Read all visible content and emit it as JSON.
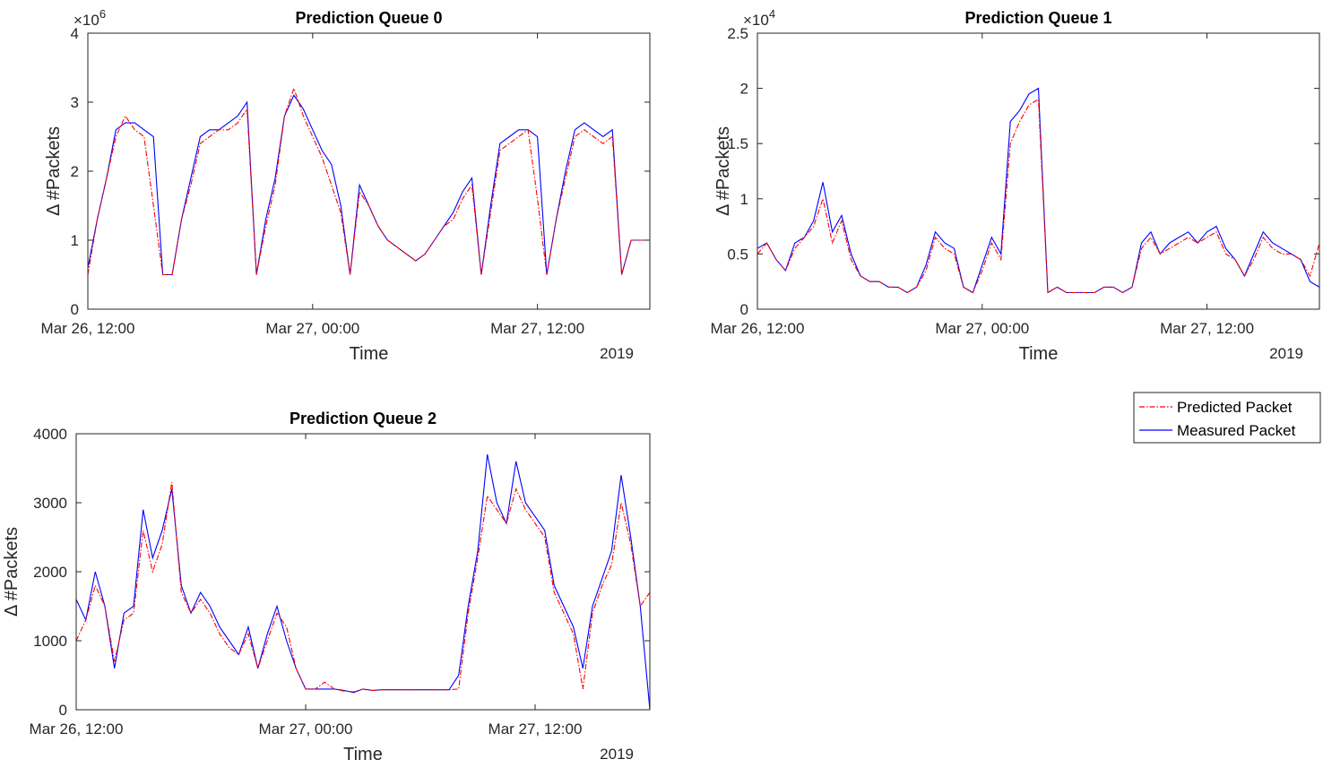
{
  "colors": {
    "predicted": "#ff0000",
    "measured": "#0000ff",
    "axis": "#262626"
  },
  "legend": {
    "entries": [
      "Predicted Packet",
      "Measured Packet"
    ]
  },
  "chart_data": [
    {
      "type": "line",
      "title": "Prediction Queue 0",
      "xlabel": "Time",
      "ylabel": "Δ #Packets",
      "year_label": "2019",
      "exponent": "6",
      "exponent_prefix": "×10",
      "x_ticks": [
        "Mar 26, 12:00",
        "Mar 27, 00:00",
        "Mar 27, 12:00"
      ],
      "y_ticks": [
        "0",
        "1",
        "2",
        "3",
        "4"
      ],
      "xlim_hours": [
        0,
        30
      ],
      "ylim": [
        0,
        4
      ],
      "series": [
        {
          "name": "Measured Packet",
          "x": [
            0,
            0.5,
            1,
            1.5,
            2,
            2.5,
            3,
            3.5,
            4,
            4.5,
            5,
            5.5,
            6,
            6.5,
            7,
            7.5,
            8,
            8.5,
            9,
            9.5,
            10,
            10.5,
            11,
            11.5,
            12,
            12.5,
            13,
            13.5,
            14,
            14.5,
            15,
            15.5,
            16,
            16.5,
            17,
            17.5,
            18,
            18.5,
            19,
            19.5,
            20,
            20.5,
            21,
            21.5,
            22,
            22.5,
            23,
            23.5,
            24,
            24.5,
            25,
            25.5,
            26,
            26.5,
            27,
            27.5,
            28,
            28.5,
            29,
            29.5,
            30
          ],
          "y": [
            0.6,
            1.3,
            1.9,
            2.6,
            2.7,
            2.7,
            2.6,
            2.5,
            0.5,
            0.5,
            1.3,
            1.9,
            2.5,
            2.6,
            2.6,
            2.7,
            2.8,
            3.0,
            0.5,
            1.3,
            1.9,
            2.8,
            3.1,
            2.9,
            2.6,
            2.3,
            2.1,
            1.5,
            0.5,
            1.8,
            1.5,
            1.2,
            1.0,
            0.9,
            0.8,
            0.7,
            0.8,
            1.0,
            1.2,
            1.4,
            1.7,
            1.9,
            0.5,
            1.5,
            2.4,
            2.5,
            2.6,
            2.6,
            2.5,
            0.5,
            1.3,
            2.0,
            2.6,
            2.7,
            2.6,
            2.5,
            2.6,
            0.5,
            1.0,
            1.0,
            1.0
          ]
        },
        {
          "name": "Predicted Packet",
          "x": [
            0,
            0.5,
            1,
            1.5,
            2,
            2.5,
            3,
            3.5,
            4,
            4.5,
            5,
            5.5,
            6,
            6.5,
            7,
            7.5,
            8,
            8.5,
            9,
            9.5,
            10,
            10.5,
            11,
            11.5,
            12,
            12.5,
            13,
            13.5,
            14,
            14.5,
            15,
            15.5,
            16,
            16.5,
            17,
            17.5,
            18,
            18.5,
            19,
            19.5,
            20,
            20.5,
            21,
            21.5,
            22,
            22.5,
            23,
            23.5,
            24,
            24.5,
            25,
            25.5,
            26,
            26.5,
            27,
            27.5,
            28,
            28.5,
            29,
            29.5,
            30
          ],
          "y": [
            0.5,
            1.3,
            1.9,
            2.5,
            2.8,
            2.6,
            2.5,
            1.5,
            0.5,
            0.5,
            1.3,
            1.8,
            2.4,
            2.5,
            2.6,
            2.6,
            2.7,
            2.9,
            0.5,
            1.2,
            1.8,
            2.8,
            3.2,
            2.8,
            2.5,
            2.2,
            1.8,
            1.4,
            0.5,
            1.7,
            1.5,
            1.2,
            1.0,
            0.9,
            0.8,
            0.7,
            0.8,
            1.0,
            1.2,
            1.3,
            1.6,
            1.8,
            0.5,
            1.4,
            2.3,
            2.4,
            2.5,
            2.6,
            1.6,
            0.5,
            1.3,
            1.9,
            2.5,
            2.6,
            2.5,
            2.4,
            2.5,
            0.5,
            1.0,
            1.0,
            1.0
          ]
        }
      ]
    },
    {
      "type": "line",
      "title": "Prediction Queue 1",
      "xlabel": "Time",
      "ylabel": "Δ #Packets",
      "year_label": "2019",
      "exponent": "4",
      "exponent_prefix": "×10",
      "x_ticks": [
        "Mar 26, 12:00",
        "Mar 27, 00:00",
        "Mar 27, 12:00"
      ],
      "y_ticks": [
        "0",
        "0.5",
        "1",
        "1.5",
        "2",
        "2.5"
      ],
      "xlim_hours": [
        0,
        30
      ],
      "ylim": [
        0,
        2.5
      ],
      "series": [
        {
          "name": "Measured Packet",
          "x": [
            0,
            0.5,
            1,
            1.5,
            2,
            2.5,
            3,
            3.5,
            4,
            4.5,
            5,
            5.5,
            6,
            6.5,
            7,
            7.5,
            8,
            8.5,
            9,
            9.5,
            10,
            10.5,
            11,
            11.5,
            12,
            12.5,
            13,
            13.5,
            14,
            14.5,
            15,
            15.5,
            16,
            16.5,
            17,
            17.5,
            18,
            18.5,
            19,
            19.5,
            20,
            20.5,
            21,
            21.5,
            22,
            22.5,
            23,
            23.5,
            24,
            24.5,
            25,
            25.5,
            26,
            26.5,
            27,
            27.5,
            28,
            28.5,
            29,
            29.5,
            30
          ],
          "y": [
            0.55,
            0.6,
            0.45,
            0.35,
            0.6,
            0.65,
            0.8,
            1.15,
            0.7,
            0.85,
            0.5,
            0.3,
            0.25,
            0.25,
            0.2,
            0.2,
            0.15,
            0.2,
            0.4,
            0.7,
            0.6,
            0.55,
            0.2,
            0.15,
            0.4,
            0.65,
            0.5,
            1.7,
            1.8,
            1.95,
            2.0,
            0.15,
            0.2,
            0.15,
            0.15,
            0.15,
            0.15,
            0.2,
            0.2,
            0.15,
            0.2,
            0.6,
            0.7,
            0.5,
            0.6,
            0.65,
            0.7,
            0.6,
            0.7,
            0.75,
            0.55,
            0.45,
            0.3,
            0.5,
            0.7,
            0.6,
            0.55,
            0.5,
            0.45,
            0.25,
            0.2
          ]
        },
        {
          "name": "Predicted Packet",
          "x": [
            0,
            0.5,
            1,
            1.5,
            2,
            2.5,
            3,
            3.5,
            4,
            4.5,
            5,
            5.5,
            6,
            6.5,
            7,
            7.5,
            8,
            8.5,
            9,
            9.5,
            10,
            10.5,
            11,
            11.5,
            12,
            12.5,
            13,
            13.5,
            14,
            14.5,
            15,
            15.5,
            16,
            16.5,
            17,
            17.5,
            18,
            18.5,
            19,
            19.5,
            20,
            20.5,
            21,
            21.5,
            22,
            22.5,
            23,
            23.5,
            24,
            24.5,
            25,
            25.5,
            26,
            26.5,
            27,
            27.5,
            28,
            28.5,
            29,
            29.5,
            30
          ],
          "y": [
            0.5,
            0.6,
            0.45,
            0.35,
            0.55,
            0.65,
            0.75,
            1.0,
            0.6,
            0.8,
            0.45,
            0.3,
            0.25,
            0.25,
            0.2,
            0.2,
            0.15,
            0.2,
            0.35,
            0.65,
            0.55,
            0.5,
            0.2,
            0.15,
            0.35,
            0.6,
            0.45,
            1.5,
            1.7,
            1.85,
            1.9,
            0.15,
            0.2,
            0.15,
            0.15,
            0.15,
            0.15,
            0.2,
            0.2,
            0.15,
            0.2,
            0.55,
            0.65,
            0.5,
            0.55,
            0.6,
            0.65,
            0.6,
            0.65,
            0.7,
            0.5,
            0.45,
            0.3,
            0.45,
            0.65,
            0.55,
            0.5,
            0.5,
            0.45,
            0.3,
            0.6
          ]
        }
      ]
    },
    {
      "type": "line",
      "title": "Prediction Queue 2",
      "xlabel": "Time",
      "ylabel": "Δ #Packets",
      "year_label": "2019",
      "exponent": "",
      "exponent_prefix": "",
      "x_ticks": [
        "Mar 26, 12:00",
        "Mar 27, 00:00",
        "Mar 27, 12:00"
      ],
      "y_ticks": [
        "0",
        "1000",
        "2000",
        "3000",
        "4000"
      ],
      "xlim_hours": [
        0,
        30
      ],
      "ylim": [
        0,
        4000
      ],
      "series": [
        {
          "name": "Measured Packet",
          "x": [
            0,
            0.5,
            1,
            1.5,
            2,
            2.5,
            3,
            3.5,
            4,
            4.5,
            5,
            5.5,
            6,
            6.5,
            7,
            7.5,
            8,
            8.5,
            9,
            9.5,
            10,
            10.5,
            11,
            11.5,
            12,
            12.5,
            13,
            13.5,
            14,
            14.5,
            15,
            15.5,
            16,
            16.5,
            17,
            17.5,
            18,
            18.5,
            19,
            19.5,
            20,
            20.5,
            21,
            21.5,
            22,
            22.5,
            23,
            23.5,
            24,
            24.5,
            25,
            25.5,
            26,
            26.5,
            27,
            27.5,
            28,
            28.5,
            29,
            29.5,
            30
          ],
          "y": [
            1600,
            1300,
            2000,
            1500,
            600,
            1400,
            1500,
            2900,
            2200,
            2600,
            3200,
            1800,
            1400,
            1700,
            1500,
            1200,
            1000,
            800,
            1200,
            600,
            1100,
            1500,
            1000,
            600,
            300,
            300,
            300,
            300,
            280,
            250,
            300,
            280,
            290,
            290,
            290,
            290,
            290,
            290,
            290,
            290,
            500,
            1500,
            2300,
            3700,
            3000,
            2700,
            3600,
            3000,
            2800,
            2600,
            1800,
            1500,
            1200,
            600,
            1500,
            1900,
            2300,
            3400,
            2500,
            1500,
            0
          ]
        },
        {
          "name": "Predicted Packet",
          "x": [
            0,
            0.5,
            1,
            1.5,
            2,
            2.5,
            3,
            3.5,
            4,
            4.5,
            5,
            5.5,
            6,
            6.5,
            7,
            7.5,
            8,
            8.5,
            9,
            9.5,
            10,
            10.5,
            11,
            11.5,
            12,
            12.5,
            13,
            13.5,
            14,
            14.5,
            15,
            15.5,
            16,
            16.5,
            17,
            17.5,
            18,
            18.5,
            19,
            19.5,
            20,
            20.5,
            21,
            21.5,
            22,
            22.5,
            23,
            23.5,
            24,
            24.5,
            25,
            25.5,
            26,
            26.5,
            27,
            27.5,
            28,
            28.5,
            29,
            29.5,
            30
          ],
          "y": [
            1000,
            1300,
            1800,
            1500,
            700,
            1300,
            1400,
            2600,
            2000,
            2400,
            3300,
            1700,
            1400,
            1600,
            1400,
            1100,
            900,
            800,
            1100,
            600,
            1000,
            1400,
            1200,
            600,
            300,
            300,
            400,
            300,
            270,
            260,
            300,
            280,
            290,
            290,
            290,
            290,
            290,
            290,
            290,
            290,
            300,
            1400,
            2200,
            3100,
            2900,
            2700,
            3200,
            2900,
            2700,
            2500,
            1700,
            1400,
            1100,
            300,
            1400,
            1800,
            2100,
            3000,
            2400,
            1500,
            1700
          ]
        }
      ]
    }
  ]
}
